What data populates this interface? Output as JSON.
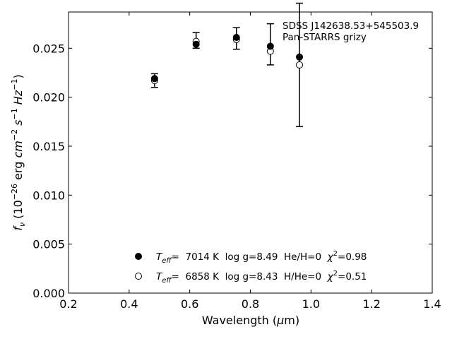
{
  "chart_data": {
    "type": "scatter",
    "xlabel": "Wavelength (μm)",
    "ylabel": "f_ν (10^-26 erg cm^-2 s^-1 Hz^-1)",
    "xlim": [
      0.2,
      1.4
    ],
    "ylim": [
      0.0,
      0.0287
    ],
    "x_ticks": [
      "0.2",
      "0.4",
      "0.6",
      "0.8",
      "1.0",
      "1.2",
      "1.4"
    ],
    "y_ticks": [
      "0.000",
      "0.005",
      "0.010",
      "0.015",
      "0.020",
      "0.025"
    ],
    "grid": false,
    "legend_position": "lower-center",
    "annotations": [
      "SDSS J142638.53+545503.9",
      "Pan-STARRS grizy"
    ],
    "observed": {
      "x": [
        0.484,
        0.621,
        0.754,
        0.866,
        0.962
      ],
      "y": [
        0.0217,
        0.0258,
        0.026,
        0.0254,
        0.0233
      ],
      "yerr": [
        0.0007,
        0.0008,
        0.0011,
        0.0021,
        0.0063
      ]
    },
    "series": [
      {
        "name": "T_eff=  7014 K  log g=8.49  He/H=0  χ²=0.98",
        "marker": "filled-circle",
        "x": [
          0.484,
          0.621,
          0.754,
          0.866,
          0.962
        ],
        "y": [
          0.0219,
          0.0254,
          0.0261,
          0.0252,
          0.0241
        ]
      },
      {
        "name": "T_eff=  6858 K  log g=8.43  H/He=0  χ²=0.51",
        "marker": "open-circle",
        "x": [
          0.484,
          0.621,
          0.754,
          0.866,
          0.962
        ],
        "y": [
          0.0217,
          0.0257,
          0.0259,
          0.0247,
          0.0233
        ]
      }
    ]
  },
  "text": {
    "annot_line1": "SDSS J142638.53+545503.9",
    "annot_line2": "Pan-STARRS grizy",
    "xlabel_main": "Wavelength (",
    "xlabel_mu": "μ",
    "xlabel_unit": "m)",
    "ylabel_f": "f",
    "ylabel_nu": "ν",
    "ylabel_open": " (10",
    "ylabel_exp1": "−26",
    "ylabel_erg": " erg ",
    "ylabel_cm": "cm",
    "ylabel_exp2": "−2",
    "ylabel_s": " s",
    "ylabel_exp3": "−1",
    "ylabel_hz": " Hz",
    "ylabel_exp4": "−1",
    "ylabel_close": ")",
    "leg1_T": "T",
    "leg1_eff": "eff",
    "leg1_mid": "=  7014 K  log g=8.49  He/H=0  ",
    "leg1_chi": "χ",
    "leg1_sup": "2",
    "leg1_end": "=0.98",
    "leg2_T": "T",
    "leg2_eff": "eff",
    "leg2_mid": "=  6858 K  log g=8.43  H/He=0  ",
    "leg2_chi": "χ",
    "leg2_sup": "2",
    "leg2_end": "=0.51"
  }
}
